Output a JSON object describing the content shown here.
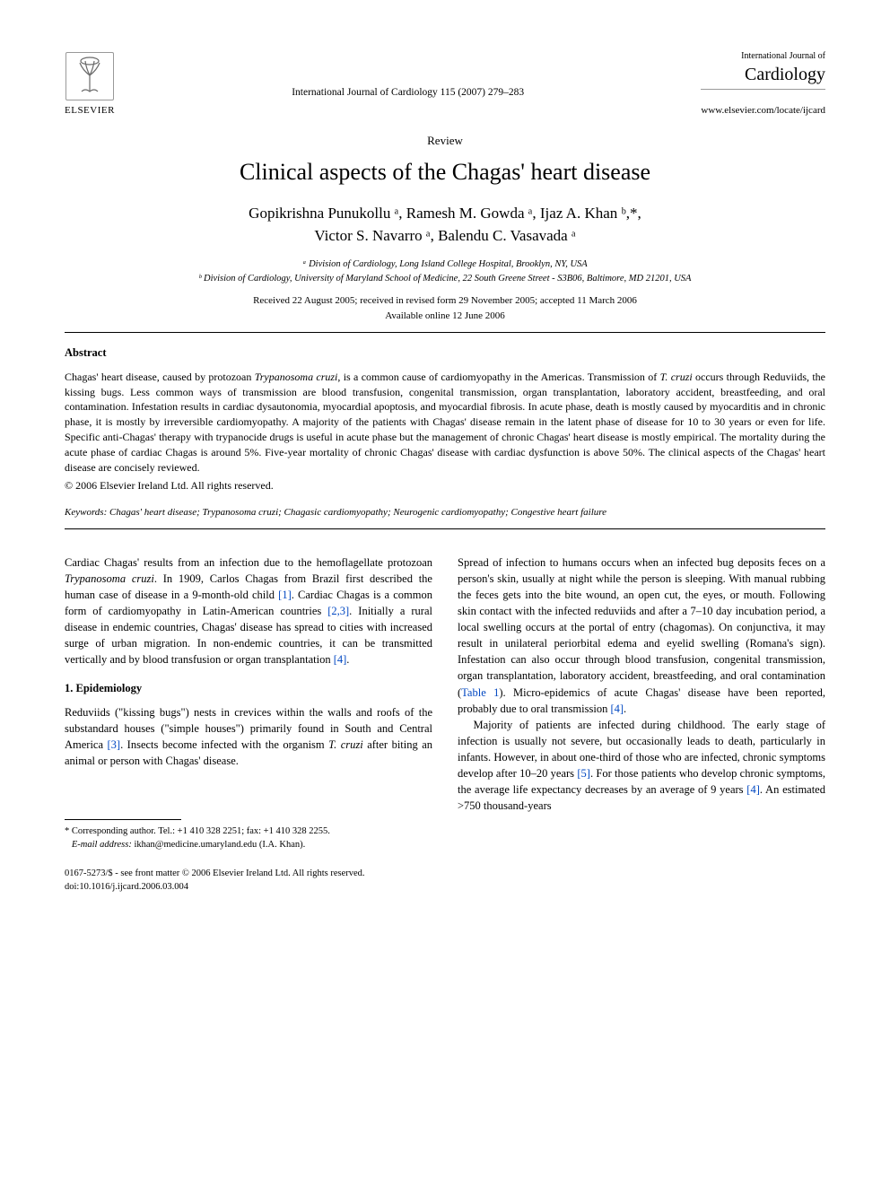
{
  "publisher": {
    "name": "ELSEVIER",
    "tree_svg_stroke": "#6a6a6a"
  },
  "journal": {
    "superscript": "International Journal of",
    "name": "Cardiology",
    "url": "www.elsevier.com/locate/ijcard"
  },
  "citation": "International Journal of Cardiology 115 (2007) 279–283",
  "article_type": "Review",
  "title": "Clinical aspects of the Chagas' heart disease",
  "authors_line1": "Gopikrishna Punukollu ᵃ, Ramesh M. Gowda ᵃ, Ijaz A. Khan ᵇ,*,",
  "authors_line2": "Victor S. Navarro ᵃ, Balendu C. Vasavada ᵃ",
  "affiliations": {
    "a": "ᵃ Division of Cardiology, Long Island College Hospital, Brooklyn, NY, USA",
    "b": "ᵇ Division of Cardiology, University of Maryland School of Medicine, 22 South Greene Street - S3B06, Baltimore, MD 21201, USA"
  },
  "dates": "Received 22 August 2005; received in revised form 29 November 2005; accepted 11 March 2006",
  "online": "Available online 12 June 2006",
  "abstract": {
    "heading": "Abstract",
    "body_html": "Chagas' heart disease, caused by protozoan <span class=\"ital\">Trypanosoma cruzi</span>, is a common cause of cardiomyopathy in the Americas. Transmission of <span class=\"ital\">T. cruzi</span> occurs through Reduviids, the kissing bugs. Less common ways of transmission are blood transfusion, congenital transmission, organ transplantation, laboratory accident, breastfeeding, and oral contamination. Infestation results in cardiac dysautonomia, myocardial apoptosis, and myocardial fibrosis. In acute phase, death is mostly caused by myocarditis and in chronic phase, it is mostly by irreversible cardiomyopathy. A majority of the patients with Chagas' disease remain in the latent phase of disease for 10 to 30 years or even for life. Specific anti-Chagas' therapy with trypanocide drugs is useful in acute phase but the management of chronic Chagas' heart disease is mostly empirical. The mortality during the acute phase of cardiac Chagas is around 5%. Five-year mortality of chronic Chagas' disease with cardiac dysfunction is above 50%. The clinical aspects of the Chagas' heart disease are concisely reviewed.",
    "copyright": "© 2006 Elsevier Ireland Ltd. All rights reserved."
  },
  "keywords": {
    "label": "Keywords:",
    "text": " Chagas' heart disease; Trypanosoma cruzi; Chagasic cardiomyopathy; Neurogenic cardiomyopathy; Congestive heart failure"
  },
  "body": {
    "intro_html": "Cardiac Chagas' results from an infection due to the hemoflagellate protozoan <span class=\"ital\">Trypanosoma cruzi</span>. In 1909, Carlos Chagas from Brazil first described the human case of disease in a 9-month-old child <span class=\"ref\">[1]</span>. Cardiac Chagas is a common form of cardiomyopathy in Latin-American countries <span class=\"ref\">[2,3]</span>. Initially a rural disease in endemic countries, Chagas' disease has spread to cities with increased surge of urban migration. In non-endemic countries, it can be transmitted vertically and by blood transfusion or organ transplantation <span class=\"ref\">[4]</span>.",
    "sec1_heading": "1. Epidemiology",
    "sec1_p1_html": "Reduviids (\"kissing bugs\") nests in crevices within the walls and roofs of the substandard houses (\"simple houses\") primarily found in South and Central America <span class=\"ref\">[3]</span>. Insects become infected with the organism <span class=\"ital\">T. cruzi</span> after biting an animal or person with Chagas' disease.",
    "col2_p1_html": "Spread of infection to humans occurs when an infected bug deposits feces on a person's skin, usually at night while the person is sleeping. With manual rubbing the feces gets into the bite wound, an open cut, the eyes, or mouth. Following skin contact with the infected reduviids and after a 7–10 day incubation period, a local swelling occurs at the portal of entry (chagomas). On conjunctiva, it may result in unilateral periorbital edema and eyelid swelling (Romana's sign). Infestation can also occur through blood transfusion, congenital transmission, organ transplantation, laboratory accident, breastfeeding, and oral contamination (<span class=\"ref\">Table 1</span>). Micro-epidemics of acute Chagas' disease have been reported, probably due to oral transmission <span class=\"ref\">[4]</span>.",
    "col2_p2_html": "Majority of patients are infected during childhood. The early stage of infection is usually not severe, but occasionally leads to death, particularly in infants. However, in about one-third of those who are infected, chronic symptoms develop after 10–20 years <span class=\"ref\">[5]</span>. For those patients who develop chronic symptoms, the average life expectancy decreases by an average of 9 years <span class=\"ref\">[4]</span>. An estimated >750 thousand-years"
  },
  "footnote": {
    "corr": "* Corresponding author. Tel.: +1 410 328 2251; fax: +1 410 328 2255.",
    "email_label": "E-mail address:",
    "email": " ikhan@medicine.umaryland.edu",
    "email_name": " (I.A. Khan)."
  },
  "bottom": {
    "issn": "0167-5273/$ - see front matter © 2006 Elsevier Ireland Ltd. All rights reserved.",
    "doi": "doi:10.1016/j.ijcard.2006.03.004"
  }
}
